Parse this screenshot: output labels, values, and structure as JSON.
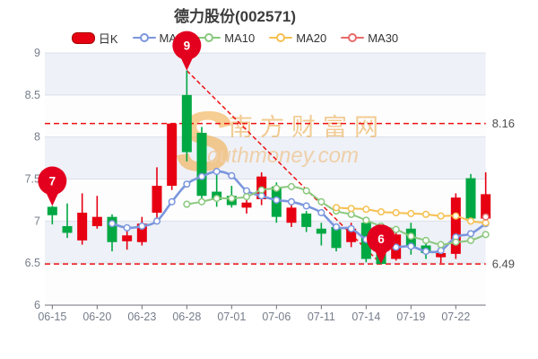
{
  "title": "德力股份(002571)",
  "legend": [
    {
      "label": "日K",
      "icon": "candlestick",
      "color": "#e60012"
    },
    {
      "label": "MA5",
      "icon": "line",
      "color": "#7b96dd"
    },
    {
      "label": "MA10",
      "icon": "line",
      "color": "#8bc87e"
    },
    {
      "label": "MA20",
      "icon": "line",
      "color": "#f6c050"
    },
    {
      "label": "MA30",
      "icon": "line",
      "color": "#e86a6a"
    }
  ],
  "watermark": {
    "initial": "S",
    "brand": "南方财富网",
    "domain": "outhmoney.com"
  },
  "colors": {
    "up": "#e60012",
    "down": "#00a843",
    "pin": "#e3001f",
    "reference_line": "#ee1111",
    "axis": "#6e7079",
    "axis_text": "#767d8a",
    "reference_label_text": "#4c4c4c",
    "grid_line": "#dbe0ea",
    "band_dark": "#eef1f7",
    "band_light": "#fdfdfe",
    "watermark_orange": "#f2a63b"
  },
  "chart_data": {
    "type": "candlestick",
    "title": "德力股份(002571)",
    "ohlc_columns": [
      "open",
      "close",
      "low",
      "high"
    ],
    "dates": [
      "06-15",
      "06-16",
      "06-17",
      "06-20",
      "06-21",
      "06-22",
      "06-23",
      "06-24",
      "06-27",
      "06-28",
      "06-29",
      "06-30",
      "07-01",
      "07-04",
      "07-05",
      "07-06",
      "07-07",
      "07-08",
      "07-11",
      "07-12",
      "07-13",
      "07-14",
      "07-15",
      "07-18",
      "07-19",
      "07-20",
      "07-21",
      "07-22",
      "07-25",
      "07-26"
    ],
    "ohlc": [
      [
        7.17,
        7.07,
        6.96,
        7.18
      ],
      [
        6.94,
        6.86,
        6.8,
        7.21
      ],
      [
        6.77,
        7.1,
        6.72,
        7.33
      ],
      [
        6.94,
        7.05,
        6.91,
        7.3
      ],
      [
        7.05,
        6.75,
        6.64,
        7.08
      ],
      [
        6.76,
        6.83,
        6.66,
        6.89
      ],
      [
        6.75,
        6.97,
        6.71,
        7.05
      ],
      [
        7.1,
        7.42,
        7.04,
        7.64
      ],
      [
        7.42,
        8.16,
        7.37,
        8.16
      ],
      [
        8.5,
        7.82,
        7.71,
        8.79
      ],
      [
        8.05,
        7.3,
        7.25,
        8.12
      ],
      [
        7.35,
        7.25,
        7.17,
        7.55
      ],
      [
        7.3,
        7.19,
        7.16,
        7.42
      ],
      [
        7.16,
        7.22,
        7.09,
        7.26
      ],
      [
        7.26,
        7.53,
        7.19,
        7.58
      ],
      [
        7.41,
        7.05,
        6.98,
        7.46
      ],
      [
        6.98,
        7.16,
        6.93,
        7.21
      ],
      [
        7.09,
        6.93,
        6.87,
        7.12
      ],
      [
        6.91,
        6.85,
        6.71,
        6.98
      ],
      [
        6.93,
        6.68,
        6.64,
        6.94
      ],
      [
        6.75,
        6.91,
        6.69,
        6.98
      ],
      [
        6.98,
        6.55,
        6.51,
        7.02
      ],
      [
        6.61,
        6.49,
        6.49,
        6.65
      ],
      [
        6.55,
        6.84,
        6.53,
        6.86
      ],
      [
        6.91,
        6.69,
        6.6,
        6.98
      ],
      [
        6.71,
        6.62,
        6.55,
        6.73
      ],
      [
        6.57,
        6.62,
        6.5,
        6.68
      ],
      [
        6.61,
        7.28,
        6.55,
        7.33
      ],
      [
        7.51,
        7.03,
        7.0,
        7.56
      ],
      [
        7.03,
        7.32,
        7.01,
        7.58
      ]
    ],
    "series": [
      {
        "name": "MA5",
        "color": "#7b96dd",
        "values": [
          null,
          null,
          null,
          null,
          6.97,
          6.92,
          6.94,
          7.0,
          7.23,
          7.44,
          7.53,
          7.59,
          7.54,
          7.36,
          7.3,
          7.25,
          7.23,
          7.18,
          7.1,
          6.93,
          6.91,
          6.78,
          6.7,
          6.69,
          6.7,
          6.64,
          6.65,
          6.81,
          6.85,
          6.97
        ]
      },
      {
        "name": "MA10",
        "color": "#8bc87e",
        "values": [
          null,
          null,
          null,
          null,
          null,
          null,
          null,
          null,
          null,
          7.2,
          7.23,
          7.27,
          7.27,
          7.29,
          7.37,
          7.39,
          7.41,
          7.36,
          7.23,
          7.12,
          7.08,
          7.01,
          6.94,
          6.9,
          6.82,
          6.77,
          6.72,
          6.75,
          6.77,
          6.84
        ]
      },
      {
        "name": "MA20",
        "color": "#f6c050",
        "values": [
          null,
          null,
          null,
          null,
          null,
          null,
          null,
          null,
          null,
          null,
          null,
          null,
          null,
          null,
          null,
          null,
          null,
          null,
          null,
          7.16,
          7.15,
          7.14,
          7.11,
          7.1,
          7.09,
          7.08,
          7.06,
          7.06,
          7.0,
          6.98
        ]
      },
      {
        "name": "MA30",
        "color": "#e86a6a",
        "values": [
          null,
          null,
          null,
          null,
          null,
          null,
          null,
          null,
          null,
          null,
          null,
          null,
          null,
          null,
          null,
          null,
          null,
          null,
          null,
          null,
          null,
          null,
          null,
          null,
          null,
          null,
          null,
          null,
          null,
          7.05
        ]
      }
    ],
    "y_axis": {
      "min": 6,
      "max": 9,
      "ticks": [
        6,
        6.5,
        7,
        7.5,
        8,
        8.5,
        9
      ]
    },
    "x_tick_labels": [
      "06-15",
      "06-20",
      "06-23",
      "06-28",
      "07-01",
      "07-06",
      "07-11",
      "07-14",
      "07-19",
      "07-22"
    ],
    "x_tick_indices": [
      0,
      3,
      6,
      9,
      12,
      15,
      18,
      21,
      24,
      27
    ],
    "reference_lines": [
      {
        "label": "8.16",
        "value": 8.16
      },
      {
        "label": "6.49",
        "value": 6.49
      }
    ],
    "trend_line": {
      "from_index": 9,
      "from_value": 8.79,
      "to_index": 22,
      "to_value": 6.49
    },
    "annotations": [
      {
        "label": "7",
        "index": 0,
        "value": 7.18,
        "points_at": "high of first candle"
      },
      {
        "label": "9",
        "index": 9,
        "value": 8.79,
        "points_at": "highest price"
      },
      {
        "label": "6",
        "index": 22,
        "value": 6.49,
        "points_at": "lowest price"
      }
    ],
    "grid": true,
    "legend_position": "top"
  }
}
